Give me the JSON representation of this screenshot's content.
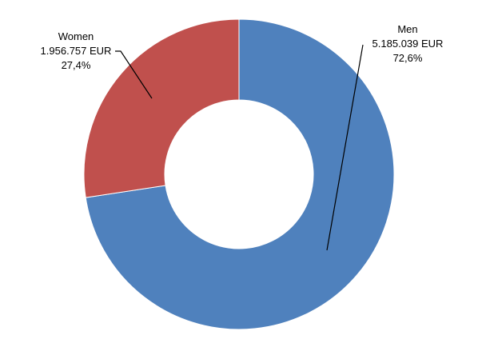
{
  "chart_data": {
    "type": "pie",
    "variant": "donut",
    "slices": [
      {
        "label": "Men",
        "amount": "5.185.039 EUR",
        "percent": "72,6%",
        "value": 5185039,
        "share": 0.726,
        "color": "#4f81bd"
      },
      {
        "label": "Women",
        "amount": "1.956.757 EUR",
        "percent": "27,4%",
        "value": 1956757,
        "share": 0.274,
        "color": "#c0504d"
      }
    ],
    "start_angle_deg": 0,
    "direction": "clockwise",
    "legend": "none"
  }
}
